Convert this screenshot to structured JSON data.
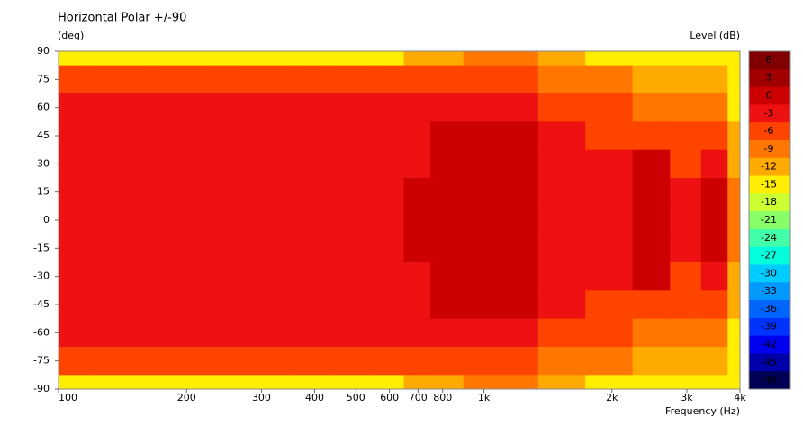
{
  "chart_data": {
    "type": "heatmap",
    "title": "Horizontal Polar +/-90",
    "y_label": "(deg)",
    "x_label": "Frequency  (Hz)",
    "colorbar_label": "Level  (dB)",
    "x_scale": "log",
    "x": [
      100,
      150,
      200,
      300,
      400,
      500,
      600,
      700,
      800,
      1000,
      1200,
      1500,
      2000,
      2500,
      3000,
      3500,
      4000
    ],
    "y": [
      90,
      75,
      60,
      45,
      30,
      15,
      0,
      -15,
      -30,
      -45,
      -60,
      -75,
      -90
    ],
    "values": [
      [
        -13,
        -13,
        -13,
        -13,
        -14,
        -13,
        -13,
        -12,
        -11,
        -8,
        -9,
        -12,
        -13,
        -14,
        -15,
        -13,
        -14
      ],
      [
        -4.5,
        -4.5,
        -4.5,
        -4.5,
        -4.5,
        -4.5,
        -4,
        -4,
        -3.5,
        -3.5,
        -4,
        -8,
        -9,
        -10,
        -11,
        -10,
        -14
      ],
      [
        -1.5,
        -1.5,
        -1.5,
        -1.5,
        -1.5,
        -1.5,
        -1.5,
        -1.5,
        -1,
        -1,
        -1,
        -4,
        -6,
        -7,
        -8,
        -7,
        -13
      ],
      [
        -1.5,
        -1.5,
        -1.5,
        -1.5,
        -1.5,
        -1.5,
        -1.5,
        -1.5,
        1.5,
        1.5,
        1,
        -1.5,
        -4,
        -4,
        -5,
        -4,
        -12
      ],
      [
        -1.5,
        -1.5,
        -1.5,
        -1.5,
        -1.5,
        -1.5,
        -1.5,
        -1.5,
        1.5,
        1.5,
        1,
        -1.5,
        -1.5,
        1,
        -3.5,
        -2,
        -11
      ],
      [
        -1.5,
        -1.5,
        -1.5,
        -1.5,
        -1.5,
        -1.5,
        -1.5,
        1,
        1.5,
        1.5,
        1,
        -1.5,
        -1.5,
        1,
        -2,
        1,
        -9
      ],
      [
        -1.5,
        -1.5,
        -1.5,
        -1.5,
        -1.5,
        -1.5,
        -1.5,
        1,
        1.5,
        1.5,
        0.5,
        -1.5,
        -1.5,
        1,
        -1,
        1,
        -8
      ],
      [
        -1.5,
        -1.5,
        -1.5,
        -1.5,
        -1.5,
        -1.5,
        -1.5,
        1,
        1.5,
        1.5,
        1,
        -1.5,
        -1.5,
        1,
        -2,
        1,
        -9
      ],
      [
        -1.5,
        -1.5,
        -1.5,
        -1.5,
        -1.5,
        -1.5,
        -1.5,
        -1.5,
        1.5,
        1.5,
        1,
        -1.5,
        -1.5,
        1,
        -3.5,
        -2,
        -11
      ],
      [
        -1.5,
        -1.5,
        -1.5,
        -1.5,
        -1.5,
        -1.5,
        -1.5,
        -1.5,
        1.5,
        1.5,
        1,
        -1.5,
        -4,
        -4,
        -5,
        -4,
        -12
      ],
      [
        -1.5,
        -1.5,
        -1.5,
        -1.5,
        -1.5,
        -1.5,
        -1.5,
        -1.5,
        -1,
        -1,
        -1,
        -4,
        -6,
        -7,
        -8,
        -7,
        -13
      ],
      [
        -4.5,
        -4.5,
        -4.5,
        -4.5,
        -4.5,
        -4.5,
        -4,
        -4,
        -3.5,
        -3.5,
        -4,
        -8,
        -9,
        -10,
        -11,
        -10,
        -14
      ],
      [
        -13,
        -13,
        -13,
        -13,
        -14,
        -13,
        -13,
        -12,
        -11,
        -8,
        -9,
        -12,
        -13,
        -14,
        -15,
        -13,
        -14
      ]
    ],
    "xlim": [
      100,
      4000
    ],
    "ylim": [
      -90,
      90
    ],
    "xticks": [
      100,
      200,
      300,
      400,
      500,
      600,
      700,
      800,
      {
        "value": 1000,
        "label": "1k"
      },
      {
        "value": 2000,
        "label": "2k"
      },
      {
        "value": 3000,
        "label": "3k"
      },
      {
        "value": 4000,
        "label": "4k"
      }
    ],
    "yticks": [
      90,
      75,
      60,
      45,
      30,
      15,
      0,
      -15,
      -30,
      -45,
      -60,
      -75,
      -90
    ],
    "colorbar": {
      "levels": [
        6,
        3,
        0,
        -3,
        -6,
        -9,
        -12,
        -15,
        -18,
        -21,
        -24,
        -27,
        -30,
        -33,
        -36,
        -39,
        -42,
        -45,
        -48
      ],
      "colors": [
        "#800000",
        "#a00000",
        "#cc0000",
        "#ee1111",
        "#ff4400",
        "#ff7700",
        "#ffaa00",
        "#ffee00",
        "#ccff33",
        "#88ff66",
        "#44ffaa",
        "#00ffdd",
        "#00ccff",
        "#0099ff",
        "#0066ff",
        "#0033ff",
        "#0000ee",
        "#0000aa",
        "#000055"
      ]
    }
  }
}
